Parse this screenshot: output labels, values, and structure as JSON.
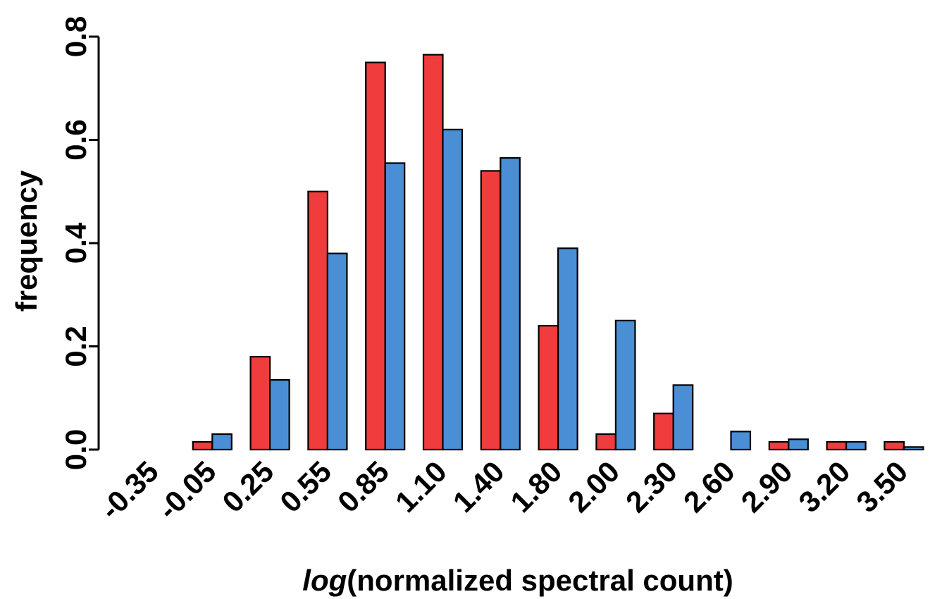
{
  "chart_data": {
    "type": "bar",
    "categories": [
      "-0.35",
      "-0.05",
      "0.25",
      "0.55",
      "0.85",
      "1.10",
      "1.40",
      "1.80",
      "2.00",
      "2.30",
      "2.60",
      "2.90",
      "3.20",
      "3.50"
    ],
    "series": [
      {
        "color": "#f03c3c",
        "values": [
          0.0,
          0.015,
          0.18,
          0.5,
          0.75,
          0.765,
          0.54,
          0.24,
          0.03,
          0.07,
          0.0,
          0.015,
          0.015,
          0.015
        ]
      },
      {
        "color": "#4a8fd6",
        "values": [
          0.0,
          0.03,
          0.135,
          0.38,
          0.555,
          0.62,
          0.565,
          0.39,
          0.25,
          0.125,
          0.035,
          0.02,
          0.015,
          0.005
        ]
      }
    ],
    "ylim": [
      0,
      0.8
    ],
    "yticks": [
      "0.0",
      "0.2",
      "0.4",
      "0.6",
      "0.8"
    ],
    "ylabel": "frequency",
    "xlabel_italic": "log",
    "xlabel_rest": "(normalized spectral count)",
    "grid": false,
    "legend": "none"
  }
}
